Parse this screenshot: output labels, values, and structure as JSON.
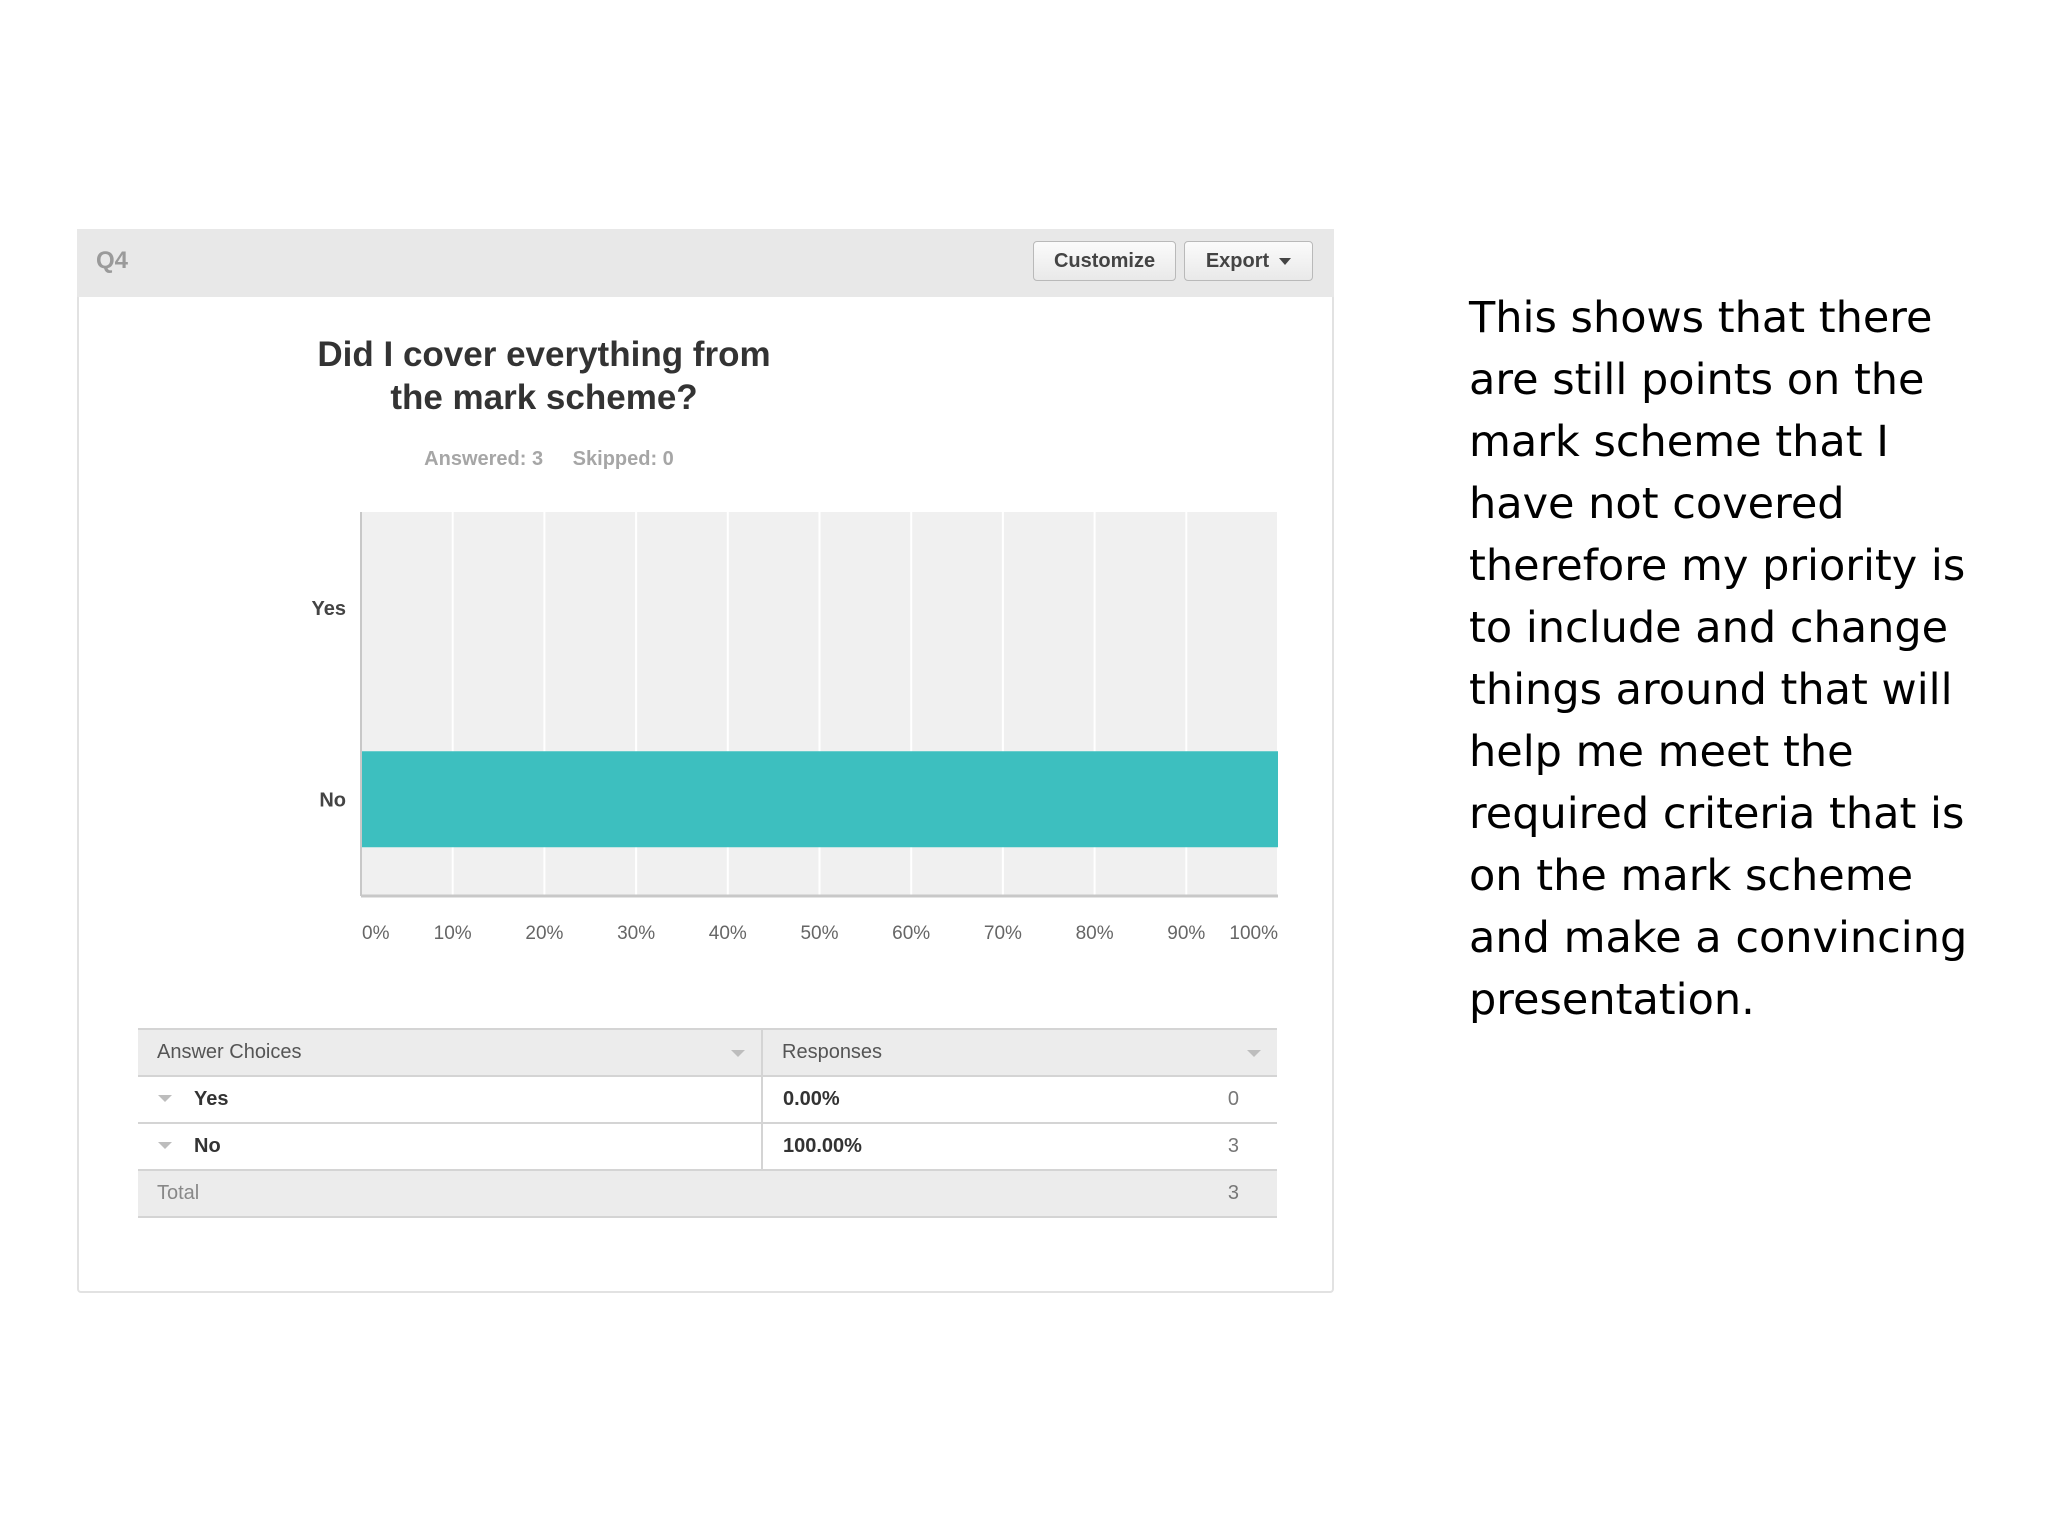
{
  "panel": {
    "question_label": "Q4",
    "customize_label": "Customize",
    "export_label": "Export"
  },
  "stats": {
    "answered": "Answered: 3",
    "skipped": "Skipped: 0"
  },
  "chart_data": {
    "type": "bar",
    "orientation": "horizontal",
    "title": "Did I cover everything from the mark scheme?",
    "categories": [
      "Yes",
      "No"
    ],
    "values": [
      0,
      100
    ],
    "x_ticks": [
      "0%",
      "10%",
      "20%",
      "30%",
      "40%",
      "50%",
      "60%",
      "70%",
      "80%",
      "90%",
      "100%"
    ],
    "xlim": [
      0,
      100
    ],
    "grid": true,
    "bar_color": "#3dbfbf"
  },
  "table": {
    "headers": [
      "Answer Choices",
      "Responses"
    ],
    "rows": [
      {
        "choice": "Yes",
        "percent": "0.00%",
        "count": "0"
      },
      {
        "choice": "No",
        "percent": "100.00%",
        "count": "3"
      }
    ],
    "total_label": "Total",
    "total_count": "3"
  },
  "side_text": "This shows that there are still points on the mark scheme that I have not covered therefore my priority is to include and change things around that will help me meet the required criteria that is on the mark scheme and make a convincing presentation."
}
